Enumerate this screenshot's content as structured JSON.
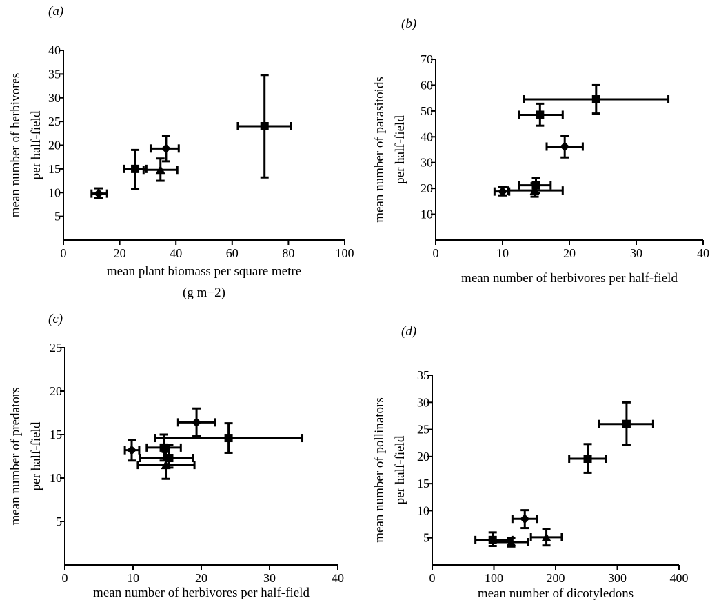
{
  "chart_data": [
    {
      "type": "scatter",
      "panel_label": "(a)",
      "xlabel_lines": [
        "mean plant biomass per square metre",
        "(g m−2)"
      ],
      "ylabel_lines": [
        "mean number of herbivores",
        "per half-field"
      ],
      "xlim": [
        0,
        100
      ],
      "ylim": [
        0,
        40
      ],
      "xticks": [
        "0",
        "20",
        "40",
        "60",
        "80",
        "100"
      ],
      "yticks": [
        "5",
        "10",
        "15",
        "20",
        "25",
        "30",
        "35",
        "40"
      ],
      "points": [
        {
          "marker": "diamond",
          "x": 12.5,
          "y": 9.8,
          "xerr": [
            10,
            15.5
          ],
          "yerr": [
            8.8,
            10.9
          ]
        },
        {
          "marker": "square",
          "x": 25.5,
          "y": 15.0,
          "xerr": [
            21.5,
            29.5
          ],
          "yerr": [
            10.7,
            19.0
          ]
        },
        {
          "marker": "triangle",
          "x": 34.5,
          "y": 14.8,
          "xerr": [
            28.5,
            40.5
          ],
          "yerr": [
            12.5,
            17.2
          ]
        },
        {
          "marker": "diamond",
          "x": 36.5,
          "y": 19.3,
          "xerr": [
            31,
            41
          ],
          "yerr": [
            16.6,
            22.0
          ]
        },
        {
          "marker": "square",
          "x": 71.5,
          "y": 24.0,
          "xerr": [
            62,
            81
          ],
          "yerr": [
            13.2,
            34.8
          ]
        }
      ]
    },
    {
      "type": "scatter",
      "panel_label": "(b)",
      "xlabel_lines": [
        "mean number of herbivores per half-field"
      ],
      "ylabel_lines": [
        "mean number of parasitoids",
        "per half-field"
      ],
      "xlim": [
        0,
        40
      ],
      "ylim": [
        0,
        70
      ],
      "xticks": [
        "0",
        "10",
        "20",
        "30",
        "40"
      ],
      "yticks": [
        "10",
        "20",
        "30",
        "40",
        "50",
        "60",
        "70"
      ],
      "points": [
        {
          "marker": "diamond",
          "x": 10.0,
          "y": 18.8,
          "xerr": [
            8.8,
            11.0
          ],
          "yerr": [
            17.3,
            20.5
          ]
        },
        {
          "marker": "triangle",
          "x": 14.8,
          "y": 19.2,
          "xerr": [
            10.8,
            19.0
          ],
          "yerr": [
            16.8,
            22.0
          ]
        },
        {
          "marker": "square",
          "x": 15.0,
          "y": 21.2,
          "xerr": [
            12.5,
            17.2
          ],
          "yerr": [
            18.3,
            24.0
          ]
        },
        {
          "marker": "square",
          "x": 15.6,
          "y": 48.5,
          "xerr": [
            12.5,
            19.0
          ],
          "yerr": [
            44.3,
            52.8
          ]
        },
        {
          "marker": "diamond",
          "x": 19.3,
          "y": 36.2,
          "xerr": [
            16.6,
            22.0
          ],
          "yerr": [
            32.0,
            40.3
          ]
        },
        {
          "marker": "square",
          "x": 24.0,
          "y": 54.5,
          "xerr": [
            13.2,
            34.8
          ],
          "yerr": [
            49.0,
            60.0
          ]
        }
      ]
    },
    {
      "type": "scatter",
      "panel_label": "(c)",
      "xlabel_lines": [
        "mean number of herbivores per half-field"
      ],
      "ylabel_lines": [
        "mean number of predators",
        "per half-field"
      ],
      "xlim": [
        0,
        40
      ],
      "ylim": [
        0,
        25
      ],
      "xticks": [
        "0",
        "10",
        "20",
        "30",
        "40"
      ],
      "yticks": [
        "5",
        "10",
        "15",
        "20",
        "25"
      ],
      "points": [
        {
          "marker": "diamond",
          "x": 9.8,
          "y": 13.2,
          "xerr": [
            8.8,
            10.9
          ],
          "yerr": [
            12.0,
            14.4
          ]
        },
        {
          "marker": "triangle",
          "x": 14.8,
          "y": 11.5,
          "xerr": [
            10.7,
            19.0
          ],
          "yerr": [
            9.9,
            13.0
          ]
        },
        {
          "marker": "square",
          "x": 14.5,
          "y": 13.5,
          "xerr": [
            12.0,
            17.0
          ],
          "yerr": [
            12.0,
            15.0
          ]
        },
        {
          "marker": "square",
          "x": 15.3,
          "y": 12.3,
          "xerr": [
            11.0,
            18.8
          ],
          "yerr": [
            11.2,
            13.8
          ]
        },
        {
          "marker": "diamond",
          "x": 19.3,
          "y": 16.4,
          "xerr": [
            16.6,
            22.0
          ],
          "yerr": [
            14.8,
            18.0
          ]
        },
        {
          "marker": "square",
          "x": 24.0,
          "y": 14.6,
          "xerr": [
            13.2,
            34.8
          ],
          "yerr": [
            12.9,
            16.3
          ]
        }
      ]
    },
    {
      "type": "scatter",
      "panel_label": "(d)",
      "xlabel_lines": [
        "mean number of dicotyledons"
      ],
      "ylabel_lines": [
        "mean number of pollinators",
        "per half-field"
      ],
      "xlim": [
        0,
        400
      ],
      "ylim": [
        0,
        35
      ],
      "xticks": [
        "0",
        "100",
        "200",
        "300",
        "400"
      ],
      "yticks": [
        "5",
        "10",
        "15",
        "20",
        "25",
        "30",
        "35"
      ],
      "points": [
        {
          "marker": "square",
          "x": 98,
          "y": 4.6,
          "xerr": [
            70,
            130
          ],
          "yerr": [
            3.5,
            6.0
          ]
        },
        {
          "marker": "triangle",
          "x": 128,
          "y": 4.2,
          "xerr": [
            98,
            155
          ],
          "yerr": [
            3.4,
            5.0
          ]
        },
        {
          "marker": "diamond",
          "x": 150,
          "y": 8.5,
          "xerr": [
            130,
            170
          ],
          "yerr": [
            6.8,
            10.1
          ]
        },
        {
          "marker": "triangle",
          "x": 185,
          "y": 5.1,
          "xerr": [
            160,
            210
          ],
          "yerr": [
            3.6,
            6.6
          ]
        },
        {
          "marker": "square",
          "x": 252,
          "y": 19.6,
          "xerr": [
            222,
            282
          ],
          "yerr": [
            17.0,
            22.3
          ]
        },
        {
          "marker": "square",
          "x": 315,
          "y": 26.0,
          "xerr": [
            270,
            358
          ],
          "yerr": [
            22.2,
            30.0
          ]
        }
      ]
    }
  ]
}
